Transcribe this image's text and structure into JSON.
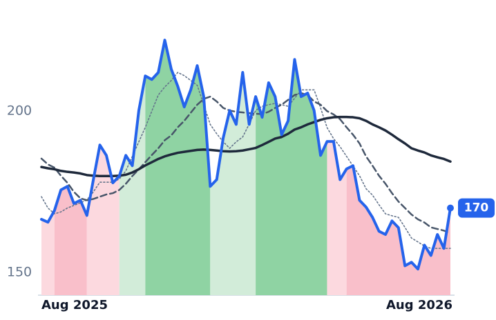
{
  "chart_data": {
    "type": "line",
    "categories": [
      "Aug 2025",
      null,
      null,
      null,
      null,
      null,
      null,
      null,
      null,
      null,
      null,
      null,
      null,
      null,
      null,
      null,
      null,
      null,
      null,
      null,
      null,
      null,
      null,
      null,
      null,
      null,
      null,
      null,
      null,
      null,
      null,
      null,
      null,
      null,
      null,
      null,
      null,
      null,
      null,
      null,
      null,
      null,
      null,
      null,
      null,
      null,
      null,
      null,
      null,
      null,
      null,
      null,
      null,
      null,
      null,
      null,
      null,
      null,
      null,
      null,
      null,
      null,
      null,
      "Aug 2026"
    ],
    "series": [
      {
        "color": "#2563eb",
        "style": "solid",
        "width": 4,
        "values": [
          166.5,
          165.6,
          169.2,
          175.6,
          176.7,
          171.4,
          172.4,
          167.7,
          178.8,
          189.5,
          186.3,
          177.8,
          179.9,
          186.3,
          183.1,
          200.2,
          210.9,
          209.8,
          212.0,
          222.0,
          213.0,
          207.7,
          201.3,
          206.6,
          214.1,
          204.5,
          176.7,
          178.8,
          191.7,
          200.2,
          195.9,
          212.0,
          195.9,
          204.5,
          198.1,
          208.8,
          204.5,
          192.7,
          197.0,
          216.0,
          204.5,
          205.6,
          200.2,
          186.3,
          190.6,
          190.6,
          178.8,
          182.1,
          183.1,
          172.4,
          170.3,
          167.1,
          162.8,
          161.8,
          166.0,
          163.9,
          152.1,
          153.2,
          151.1,
          158.5,
          155.3,
          161.8,
          157.5,
          170
        ],
        "value_labels_last": true
      },
      {
        "color": "#1e293b",
        "style": "solid",
        "width": 3.5,
        "values": [
          182.7,
          182.3,
          182,
          181.5,
          181.2,
          181,
          180.7,
          180.2,
          180,
          179.9,
          179.9,
          179.9,
          180,
          180.3,
          181,
          182,
          183.2,
          184.2,
          185.2,
          186,
          186.6,
          187.1,
          187.4,
          187.7,
          188,
          188.1,
          188,
          187.8,
          187.6,
          187.5,
          187.6,
          187.8,
          188.2,
          188.6,
          189.5,
          190.5,
          191.5,
          192,
          193,
          194.3,
          195,
          195.9,
          196.6,
          197.3,
          197.8,
          198.1,
          198.2,
          198.2,
          198.1,
          197.8,
          197,
          195.9,
          195,
          194,
          192.7,
          191.3,
          190,
          188.5,
          187.8,
          187.2,
          186.3,
          185.7,
          185.2,
          184.4
        ]
      },
      {
        "color": "#475569",
        "style": "dashed",
        "width": 2.5,
        "values": [
          185.3,
          183.5,
          182.5,
          180,
          177.8,
          175,
          173,
          172.4,
          172.8,
          173.5,
          174.2,
          174.6,
          175.6,
          177.5,
          179.9,
          182,
          184.2,
          186.4,
          188.5,
          191,
          192.5,
          195,
          197,
          199.5,
          202,
          203.8,
          204.5,
          203,
          201,
          200.2,
          199.8,
          199.6,
          199.4,
          199.2,
          199.1,
          199.8,
          201,
          202,
          203.5,
          205,
          205.6,
          205,
          203,
          202,
          200,
          199,
          197.5,
          195,
          192.7,
          190,
          186,
          183.1,
          180,
          177.5,
          174.6,
          172,
          170,
          168,
          166.5,
          165.5,
          164,
          163.5,
          163,
          162.2
        ]
      },
      {
        "color": "#64748b",
        "style": "dotted",
        "width": 1.6,
        "values": [
          173.5,
          170,
          168.2,
          168.8,
          170,
          170.8,
          171.6,
          172.5,
          175,
          178,
          178,
          178,
          179,
          181.5,
          186,
          190.5,
          195,
          200,
          205,
          207.5,
          209.5,
          212,
          211,
          209.5,
          208,
          202,
          195.9,
          193,
          190.5,
          188.5,
          190.5,
          192,
          196,
          200.2,
          201.5,
          202,
          202.4,
          202,
          201.5,
          204,
          206.6,
          206.6,
          206.6,
          201,
          194.9,
          191.5,
          189,
          186,
          183,
          180,
          176,
          174,
          171,
          168.2,
          167.6,
          167.1,
          164,
          160.7,
          159.5,
          158.2,
          157.5,
          157.5,
          157.5,
          157.5
        ]
      }
    ],
    "regions": [
      {
        "from": 0,
        "to": 2,
        "color": "#fcd9df"
      },
      {
        "from": 2,
        "to": 7,
        "color": "#f9bfca"
      },
      {
        "from": 7,
        "to": 12,
        "color": "#fcd9df"
      },
      {
        "from": 12,
        "to": 16,
        "color": "#d2ecd9"
      },
      {
        "from": 16,
        "to": 26,
        "color": "#8fd3a3"
      },
      {
        "from": 26,
        "to": 33,
        "color": "#d2ecd9"
      },
      {
        "from": 33,
        "to": 44,
        "color": "#8fd3a3"
      },
      {
        "from": 44,
        "to": 47,
        "color": "#fcd9df"
      },
      {
        "from": 47,
        "to": 63,
        "color": "#f9bfca"
      }
    ],
    "ylim": [
      143,
      234
    ],
    "yticks": [
      150,
      200
    ],
    "grid": false
  }
}
